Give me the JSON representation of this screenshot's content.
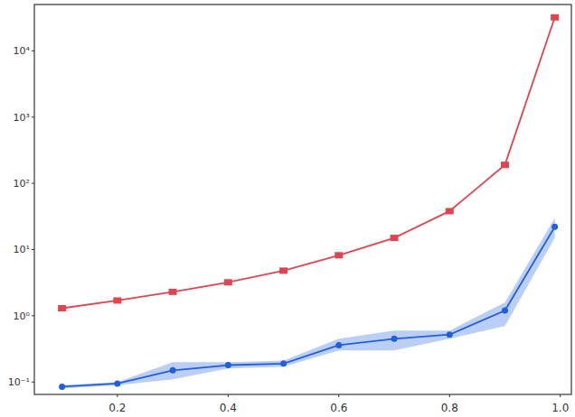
{
  "chart_data": {
    "type": "line",
    "log": "y",
    "grid": false,
    "x": [
      0.1,
      0.2,
      0.3,
      0.4,
      0.5,
      0.6,
      0.7,
      0.8,
      0.9,
      0.99
    ],
    "xlim": [
      0.05,
      1.02
    ],
    "xticks": [
      0.2,
      0.4,
      0.6,
      0.8,
      {
        "value": 1,
        "label": "1.0"
      }
    ],
    "ylim": [
      0.065,
      50000
    ],
    "yticks": [
      {
        "value": 0.1,
        "label": "10⁻¹"
      },
      {
        "value": 1,
        "label": "10⁰"
      },
      {
        "value": 10,
        "label": "10¹"
      },
      {
        "value": 100,
        "label": "10²"
      },
      {
        "value": 1000,
        "label": "10³"
      },
      {
        "value": 10000,
        "label": "10⁴"
      }
    ],
    "series": [
      {
        "color": "#e0454f",
        "marker": "square",
        "line_style": "solid",
        "values": [
          1.3,
          1.7,
          2.3,
          3.2,
          4.8,
          8.2,
          15,
          38,
          190,
          32000
        ]
      },
      {
        "color": "#1f5fe0",
        "marker": "circle",
        "line_style": "solid",
        "values": [
          0.085,
          0.095,
          0.15,
          0.18,
          0.19,
          0.36,
          0.45,
          0.52,
          1.2,
          22
        ],
        "lower": [
          0.08,
          0.09,
          0.11,
          0.16,
          0.17,
          0.3,
          0.3,
          0.45,
          0.7,
          15
        ],
        "upper": [
          0.09,
          0.1,
          0.2,
          0.2,
          0.21,
          0.45,
          0.6,
          0.6,
          1.6,
          30
        ]
      }
    ]
  }
}
